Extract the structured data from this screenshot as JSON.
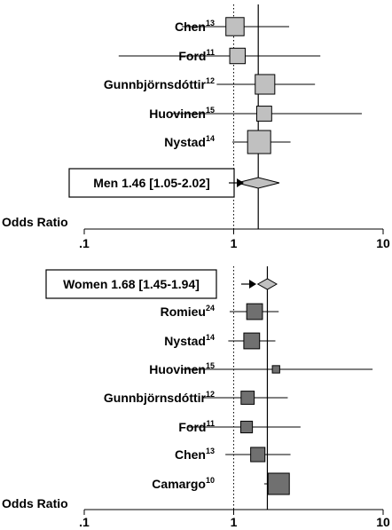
{
  "chart_data": [
    {
      "type": "forest",
      "xscale": "log",
      "xlim": [
        0.1,
        10
      ],
      "xlabel": "Odds Ratio",
      "xticks": [
        ".1",
        "1",
        "10"
      ],
      "reference_line": 1,
      "pooled_line": 1.46,
      "studies": [
        {
          "author": "Chen",
          "ref": "13",
          "or": 1.02,
          "ci": [
            0.45,
            2.35
          ],
          "weight": 0.62
        },
        {
          "author": "Ford",
          "ref": "11",
          "or": 1.06,
          "ci": [
            0.17,
            3.8
          ],
          "weight": 0.45
        },
        {
          "author": "Gunnbjörnsdóttir",
          "ref": "12",
          "or": 1.62,
          "ci": [
            0.77,
            3.5
          ],
          "weight": 0.72
        },
        {
          "author": "Huovinen",
          "ref": "15",
          "or": 1.6,
          "ci": [
            0.38,
            7.2
          ],
          "weight": 0.42
        },
        {
          "author": "Nystad",
          "ref": "14",
          "or": 1.48,
          "ci": [
            0.98,
            2.4
          ],
          "weight": 1.0
        }
      ],
      "summary": {
        "label": "Men 1.46 [1.05-2.02]",
        "or": 1.46,
        "ci": [
          1.05,
          2.02
        ]
      }
    },
    {
      "type": "forest",
      "xscale": "log",
      "xlim": [
        0.1,
        10
      ],
      "xlabel": "Odds Ratio",
      "xticks": [
        ".1",
        "1",
        "10"
      ],
      "reference_line": 1,
      "pooled_line": 1.68,
      "summary": {
        "label": "Women 1.68 [1.45-1.94]",
        "or": 1.68,
        "ci": [
          1.45,
          1.94
        ]
      },
      "studies": [
        {
          "author": "Romieu",
          "ref": "24",
          "or": 1.38,
          "ci": [
            0.94,
            2.0
          ],
          "weight": 0.55
        },
        {
          "author": "Nystad",
          "ref": "14",
          "or": 1.32,
          "ci": [
            0.92,
            1.9
          ],
          "weight": 0.55
        },
        {
          "author": "Huovinen",
          "ref": "15",
          "or": 1.92,
          "ci": [
            0.45,
            8.5
          ],
          "weight": 0.12
        },
        {
          "author": "Gunnbjörnsdóttir",
          "ref": "12",
          "or": 1.24,
          "ci": [
            0.62,
            2.3
          ],
          "weight": 0.38
        },
        {
          "author": "Ford",
          "ref": "11",
          "or": 1.22,
          "ci": [
            0.5,
            2.8
          ],
          "weight": 0.3
        },
        {
          "author": "Chen",
          "ref": "13",
          "or": 1.45,
          "ci": [
            0.88,
            2.4
          ],
          "weight": 0.45
        },
        {
          "author": "Camargo",
          "ref": "10",
          "or": 2.0,
          "ci": [
            1.6,
            2.35
          ],
          "weight": 1.0
        }
      ]
    }
  ]
}
